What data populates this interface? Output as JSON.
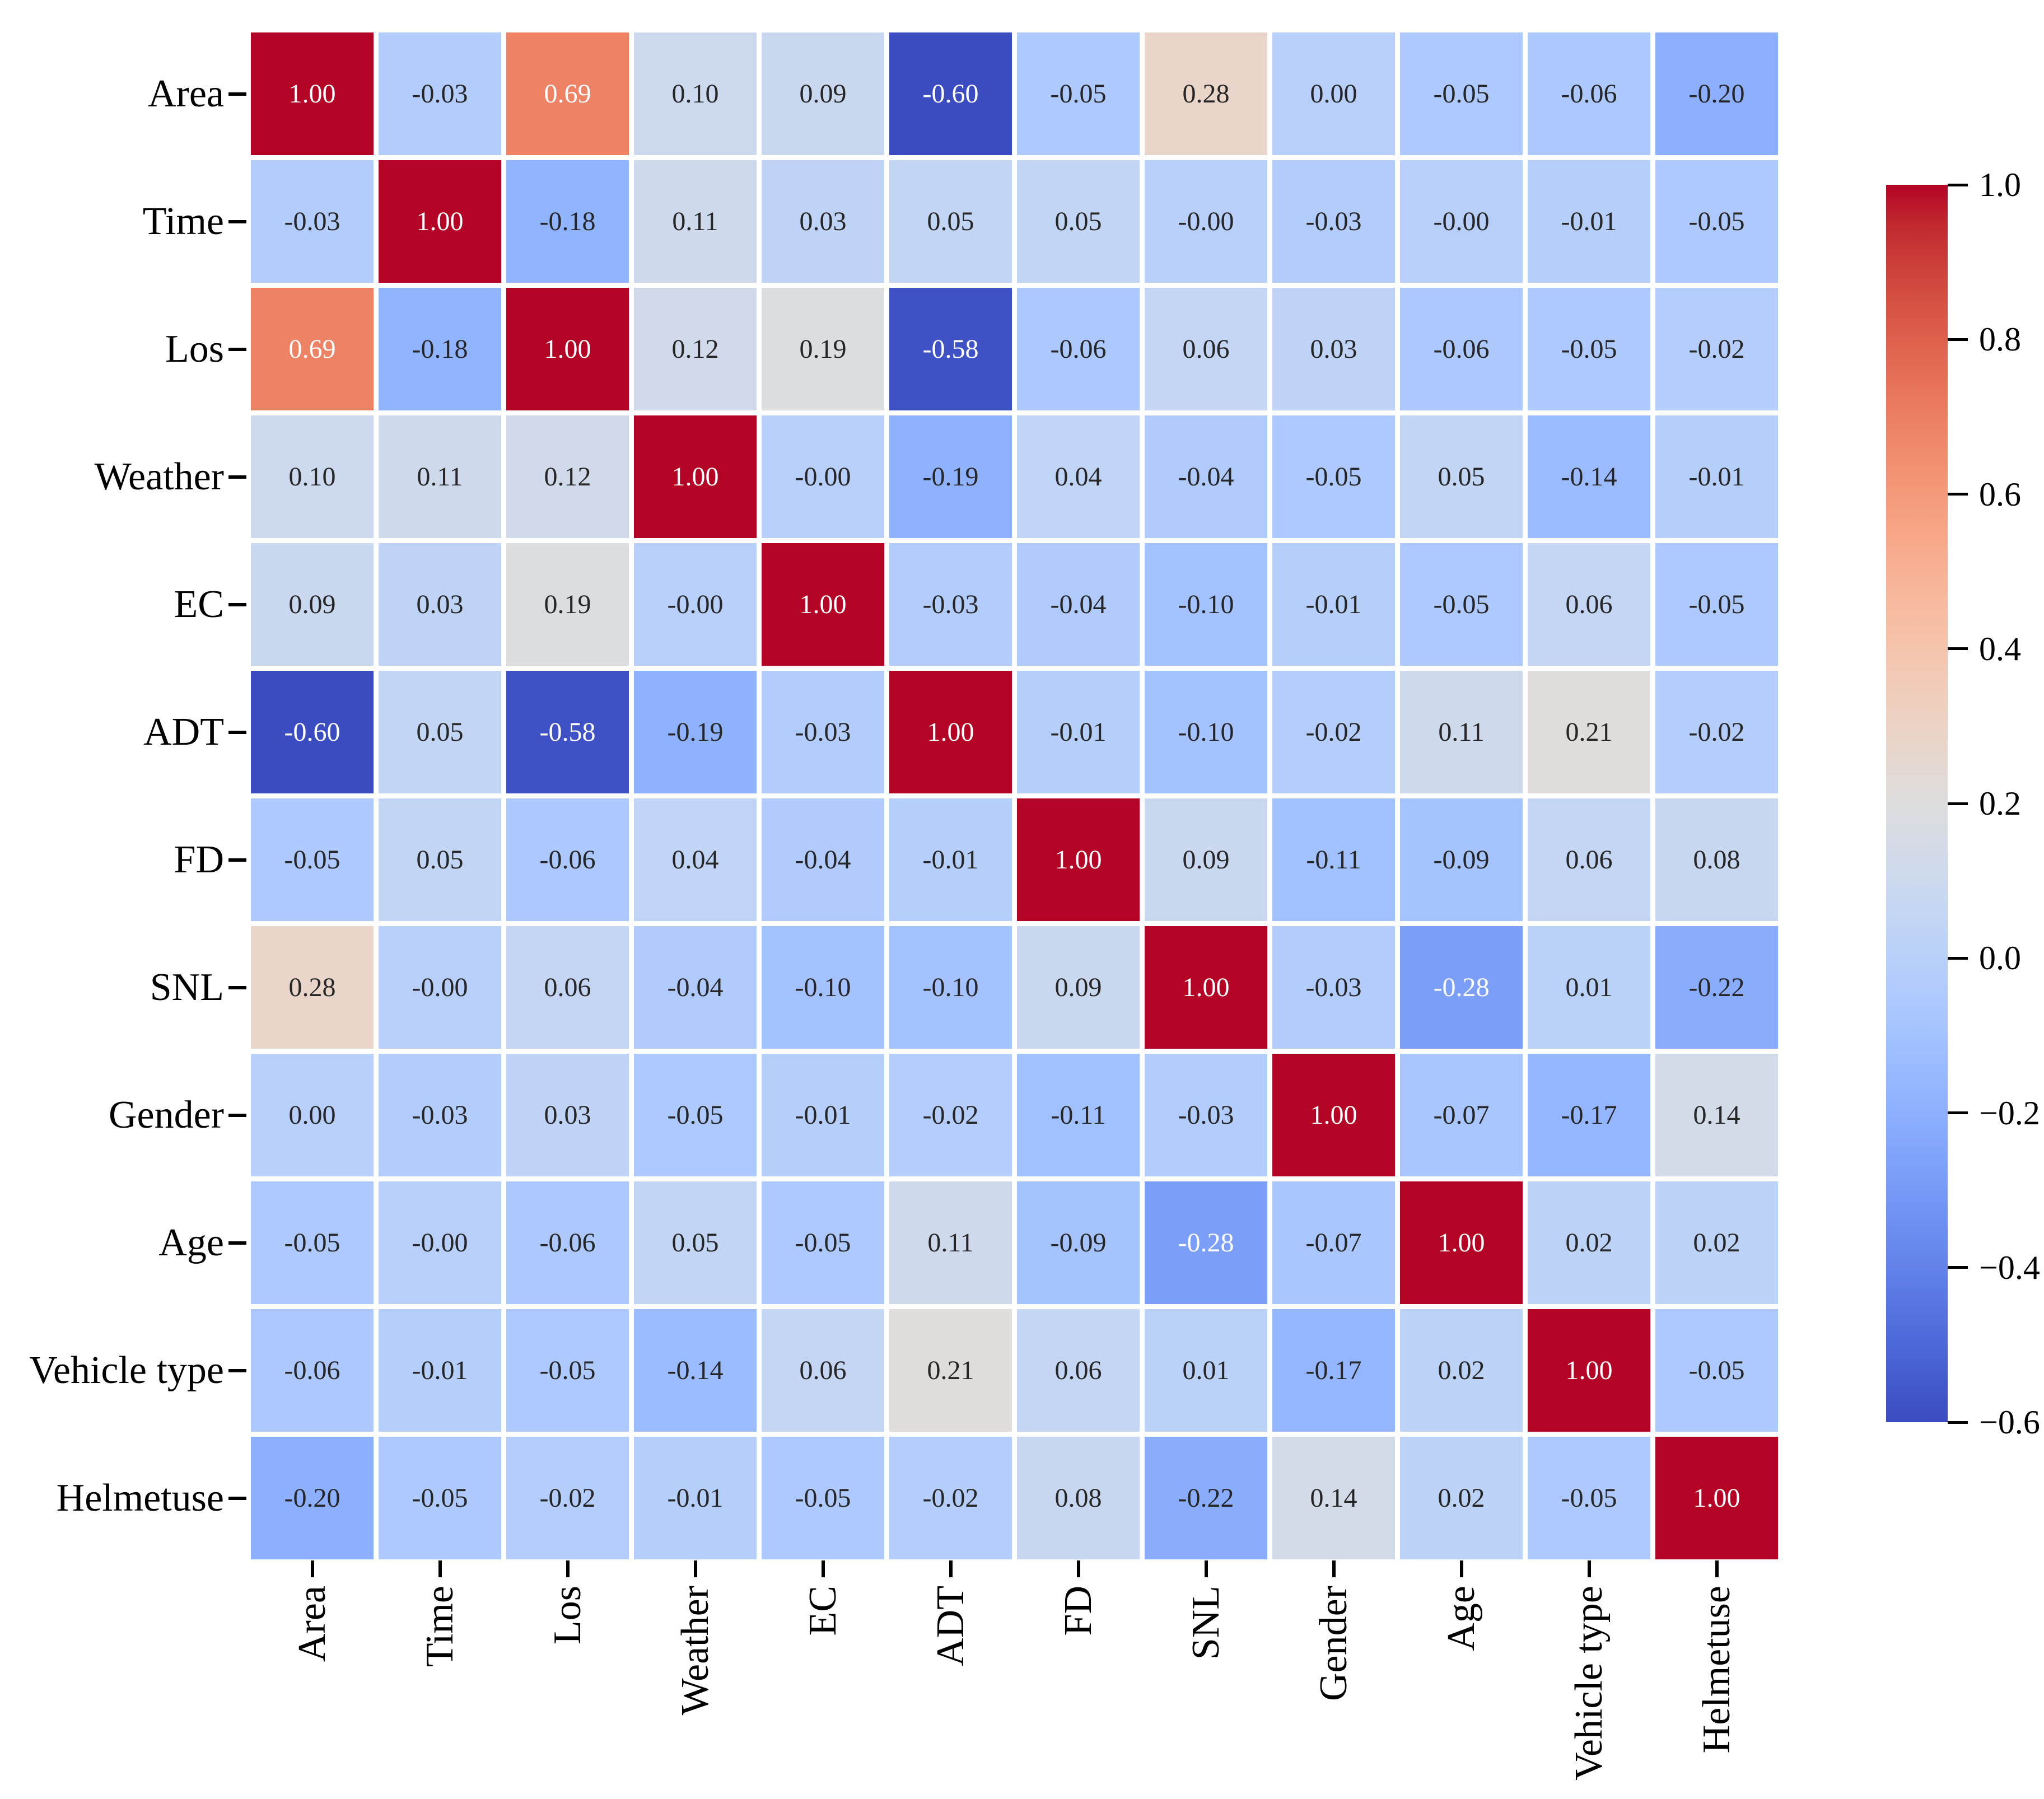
{
  "chart_data": {
    "type": "heatmap",
    "title": "",
    "categories": [
      "Area",
      "Time",
      "Los",
      "Weather",
      "EC",
      "ADT",
      "FD",
      "SNL",
      "Gender",
      "Age",
      "Vehicle type",
      "Helmetuse"
    ],
    "matrix": [
      [
        "1.00",
        "-0.03",
        "0.69",
        "0.10",
        "0.09",
        "-0.60",
        "-0.05",
        "0.28",
        "0.00",
        "-0.05",
        "-0.06",
        "-0.20"
      ],
      [
        "-0.03",
        "1.00",
        "-0.18",
        "0.11",
        "0.03",
        "0.05",
        "0.05",
        "-0.00",
        "-0.03",
        "-0.00",
        "-0.01",
        "-0.05"
      ],
      [
        "0.69",
        "-0.18",
        "1.00",
        "0.12",
        "0.19",
        "-0.58",
        "-0.06",
        "0.06",
        "0.03",
        "-0.06",
        "-0.05",
        "-0.02"
      ],
      [
        "0.10",
        "0.11",
        "0.12",
        "1.00",
        "-0.00",
        "-0.19",
        "0.04",
        "-0.04",
        "-0.05",
        "0.05",
        "-0.14",
        "-0.01"
      ],
      [
        "0.09",
        "0.03",
        "0.19",
        "-0.00",
        "1.00",
        "-0.03",
        "-0.04",
        "-0.10",
        "-0.01",
        "-0.05",
        "0.06",
        "-0.05"
      ],
      [
        "-0.60",
        "0.05",
        "-0.58",
        "-0.19",
        "-0.03",
        "1.00",
        "-0.01",
        "-0.10",
        "-0.02",
        "0.11",
        "0.21",
        "-0.02"
      ],
      [
        "-0.05",
        "0.05",
        "-0.06",
        "0.04",
        "-0.04",
        "-0.01",
        "1.00",
        "0.09",
        "-0.11",
        "-0.09",
        "0.06",
        "0.08"
      ],
      [
        "0.28",
        "-0.00",
        "0.06",
        "-0.04",
        "-0.10",
        "-0.10",
        "0.09",
        "1.00",
        "-0.03",
        "-0.28",
        "0.01",
        "-0.22"
      ],
      [
        "0.00",
        "-0.03",
        "0.03",
        "-0.05",
        "-0.01",
        "-0.02",
        "-0.11",
        "-0.03",
        "1.00",
        "-0.07",
        "-0.17",
        "0.14"
      ],
      [
        "-0.05",
        "-0.00",
        "-0.06",
        "0.05",
        "-0.05",
        "0.11",
        "-0.09",
        "-0.28",
        "-0.07",
        "1.00",
        "0.02",
        "0.02"
      ],
      [
        "-0.06",
        "-0.01",
        "-0.05",
        "-0.14",
        "0.06",
        "0.21",
        "0.06",
        "0.01",
        "-0.17",
        "0.02",
        "1.00",
        "-0.05"
      ],
      [
        "-0.20",
        "-0.05",
        "-0.02",
        "-0.01",
        "-0.05",
        "-0.02",
        "0.08",
        "-0.22",
        "0.14",
        "0.02",
        "-0.05",
        "1.00"
      ]
    ],
    "xlabel": "",
    "ylabel": "",
    "vmin": -0.6,
    "vmax": 1.0,
    "colormap": "coolwarm",
    "grid": "white cell borders",
    "annotations": "values shown in each cell, 2 decimals",
    "colorbar": {
      "position": "right",
      "ticks": [
        "1.0",
        "0.8",
        "0.6",
        "0.4",
        "0.2",
        "0.0",
        "−0.2",
        "−0.4",
        "−0.6"
      ],
      "tick_values": [
        1.0,
        0.8,
        0.6,
        0.4,
        0.2,
        0.0,
        -0.2,
        -0.4,
        -0.6
      ]
    }
  }
}
